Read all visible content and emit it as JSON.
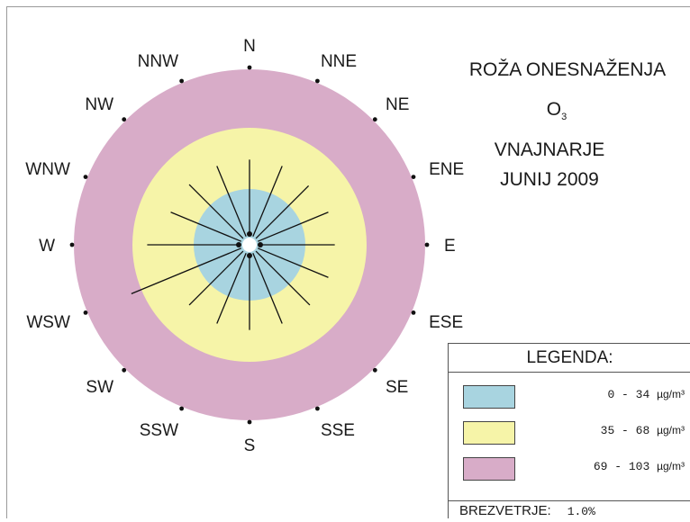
{
  "chart_data": {
    "type": "pollution-rose",
    "title": "ROŽA ONESNAŽENJA",
    "pollutant": "O",
    "pollutant_subscript": "3",
    "location": "VNAJNARJE",
    "period": "JUNIJ 2009",
    "directions": [
      "N",
      "NNE",
      "NE",
      "ENE",
      "E",
      "ESE",
      "SE",
      "SSE",
      "S",
      "SSW",
      "SW",
      "WSW",
      "W",
      "WNW",
      "NW",
      "NNW"
    ],
    "scale_max": 103,
    "rings": [
      {
        "from": 0,
        "to": 34,
        "color": "#a8d4e0"
      },
      {
        "from": 35,
        "to": 68,
        "color": "#f6f4a8"
      },
      {
        "from": 69,
        "to": 103,
        "color": "#d8acc8"
      }
    ],
    "values": [
      50,
      50,
      49,
      50,
      50,
      50,
      50,
      50,
      50,
      50,
      50,
      75,
      60,
      50,
      50,
      50
    ]
  },
  "legend": {
    "title": "LEGENDA:",
    "rows": [
      {
        "range": "0 - 34",
        "unit": "µg/m³",
        "color": "#a8d4e0"
      },
      {
        "range": "35 - 68",
        "unit": "µg/m³",
        "color": "#f6f4a8"
      },
      {
        "range": "69 - 103",
        "unit": "µg/m³",
        "color": "#d8acc8"
      }
    ]
  },
  "calm": {
    "label": "BREZVETRJE:",
    "value": "1.0%"
  }
}
